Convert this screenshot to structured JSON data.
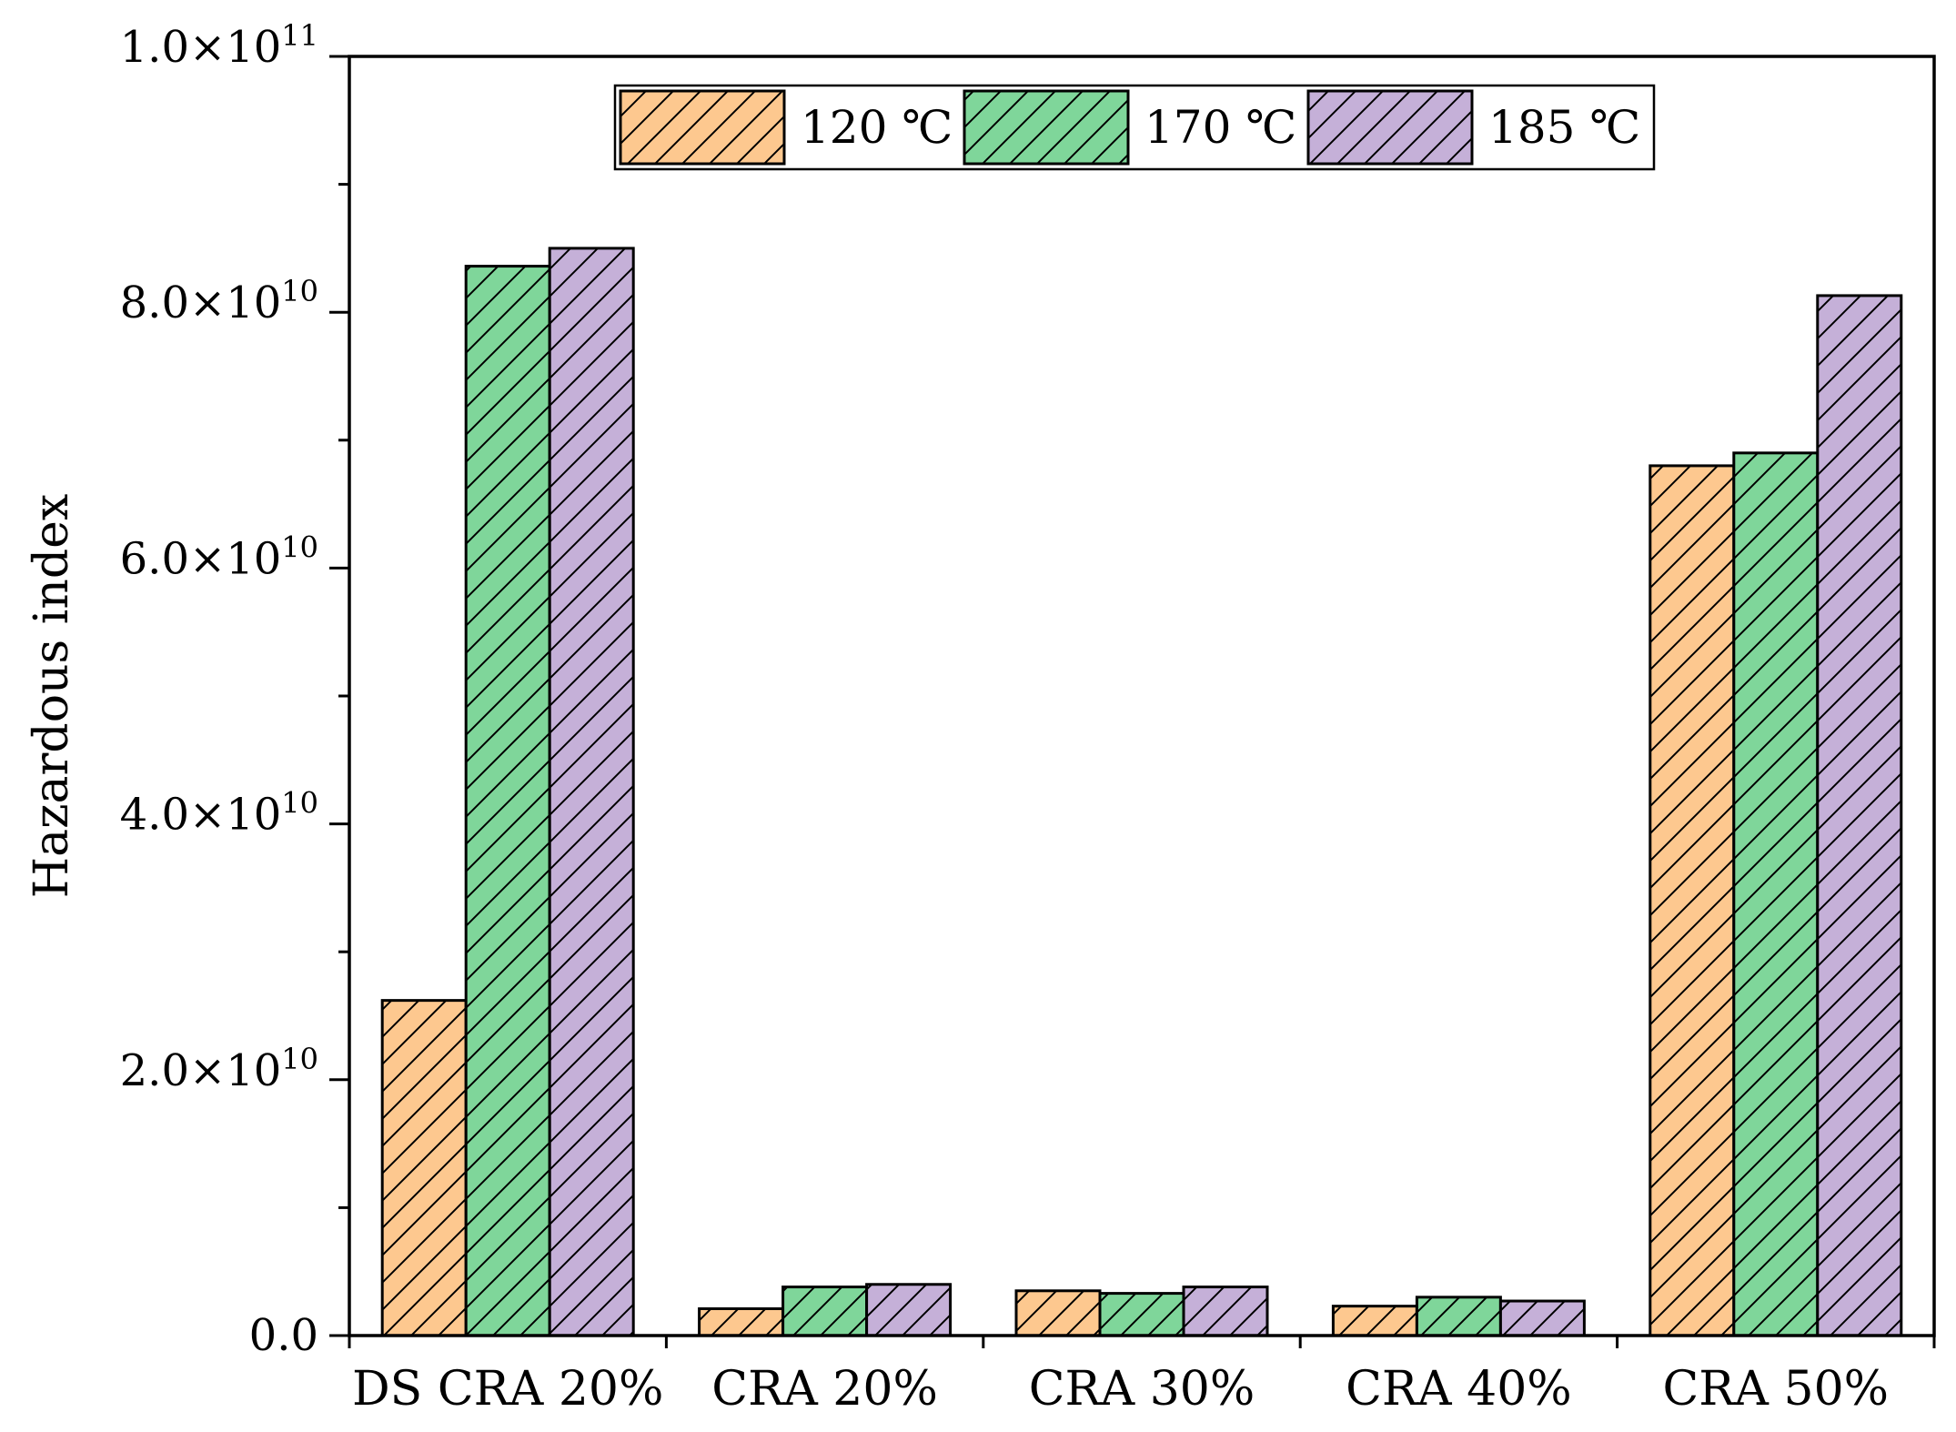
{
  "chart_data": {
    "type": "bar",
    "title": "",
    "xlabel": "",
    "ylabel": "Hazardous index",
    "ylim": [
      0,
      100000000000
    ],
    "yticks": [
      {
        "value": 0,
        "label": "0.0"
      },
      {
        "value": 20000000000,
        "label": "2.0×10",
        "exp": "10"
      },
      {
        "value": 40000000000,
        "label": "4.0×10",
        "exp": "10"
      },
      {
        "value": 60000000000,
        "label": "6.0×10",
        "exp": "10"
      },
      {
        "value": 80000000000,
        "label": "8.0×10",
        "exp": "10"
      },
      {
        "value": 100000000000,
        "label": "1.0×10",
        "exp": "11"
      }
    ],
    "categories": [
      "DS CRA 20%",
      "CRA 20%",
      "CRA 30%",
      "CRA 40%",
      "CRA 50%"
    ],
    "series": [
      {
        "name": "120 ℃",
        "color": "#fdc88f",
        "values": [
          26200000000,
          2100000000,
          3500000000,
          2300000000,
          68000000000
        ]
      },
      {
        "name": "170 ℃",
        "color": "#7fd69a",
        "values": [
          83600000000,
          3800000000,
          3300000000,
          3000000000,
          69000000000
        ]
      },
      {
        "name": "185 ℃",
        "color": "#c5b0d8",
        "values": [
          85000000000,
          4000000000,
          3800000000,
          2700000000,
          81300000000
        ]
      }
    ],
    "hatch": "diagonal",
    "legend_position": "top-center",
    "grid": false
  }
}
